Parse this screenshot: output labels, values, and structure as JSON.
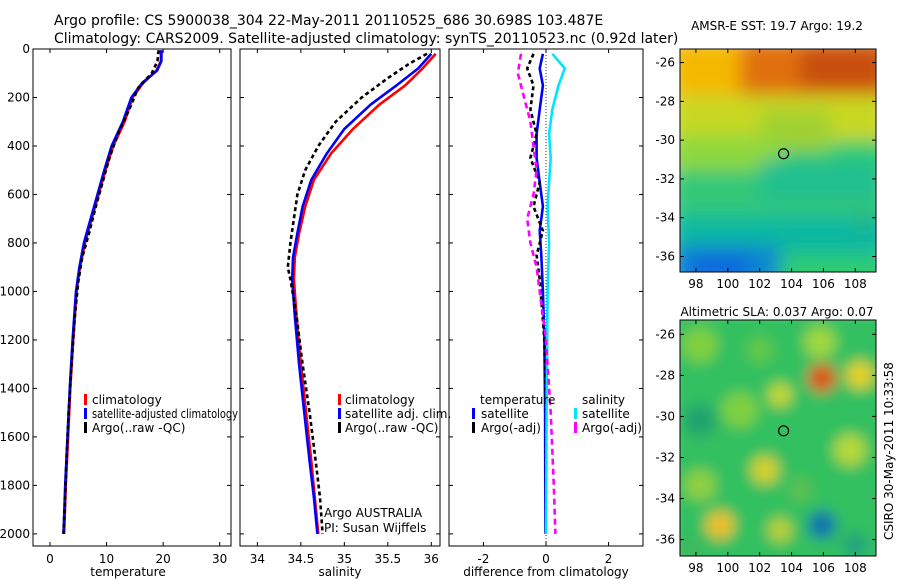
{
  "header": {
    "line1": "Argo profile: CS 5900038_304 22-May-2011 20110525_686 30.698S 103.487E",
    "line2": "Climatology: CARS2009. Satellite-adjusted climatology: synTS_20110523.nc (0.92d later)"
  },
  "side_label": "CSIRO 30-May-2011 10:33:58",
  "colors": {
    "climatology": "#ff0000",
    "satellite": "#0000ff",
    "argo": "#000000",
    "sal_satellite": "#00e5ff",
    "sal_argo": "#ff00ff"
  },
  "chart_data": [
    {
      "type": "line",
      "id": "temperature",
      "xlabel": "temperature",
      "ylabel": "",
      "xlim": [
        -3,
        32
      ],
      "ylim": [
        0,
        2050
      ],
      "y_reversed": true,
      "xticks": [
        0,
        10,
        20,
        30
      ],
      "xtick_labels": [
        "0",
        "10",
        "20",
        "30"
      ],
      "yticks": [
        0,
        200,
        400,
        600,
        800,
        1000,
        1200,
        1400,
        1600,
        1800,
        2000
      ],
      "ytick_labels": [
        "0",
        "200",
        "400",
        "600",
        "800",
        "1000",
        "1200",
        "1400",
        "1600",
        "1800",
        "2000"
      ],
      "legend": [
        "climatology",
        "satellite-adjusted climatology",
        "Argo(..raw -QC)"
      ],
      "series": [
        {
          "name": "climatology",
          "color": "#ff0000",
          "dash": "",
          "points": [
            [
              19.6,
              5
            ],
            [
              19.6,
              50
            ],
            [
              18.8,
              90
            ],
            [
              16.5,
              140
            ],
            [
              14.6,
              200
            ],
            [
              13.2,
              300
            ],
            [
              11.2,
              400
            ],
            [
              9.8,
              500
            ],
            [
              8.6,
              600
            ],
            [
              7.4,
              700
            ],
            [
              6.2,
              800
            ],
            [
              5.3,
              900
            ],
            [
              4.7,
              1000
            ],
            [
              4.1,
              1200
            ],
            [
              3.6,
              1400
            ],
            [
              3.2,
              1600
            ],
            [
              2.8,
              1800
            ],
            [
              2.5,
              2000
            ]
          ]
        },
        {
          "name": "satellite-adjusted climatology",
          "color": "#0000ff",
          "dash": "",
          "points": [
            [
              19.7,
              5
            ],
            [
              19.7,
              50
            ],
            [
              18.9,
              90
            ],
            [
              16.3,
              140
            ],
            [
              14.4,
              200
            ],
            [
              12.9,
              300
            ],
            [
              10.9,
              400
            ],
            [
              9.6,
              500
            ],
            [
              8.4,
              600
            ],
            [
              7.2,
              700
            ],
            [
              6.0,
              800
            ],
            [
              5.2,
              900
            ],
            [
              4.6,
              1000
            ],
            [
              4.0,
              1200
            ],
            [
              3.5,
              1400
            ],
            [
              3.1,
              1600
            ],
            [
              2.7,
              1800
            ],
            [
              2.4,
              2000
            ]
          ]
        },
        {
          "name": "Argo(..raw -QC)",
          "color": "#000000",
          "dash": "4,3",
          "points": [
            [
              19.2,
              5
            ],
            [
              19.0,
              50
            ],
            [
              18.0,
              100
            ],
            [
              15.6,
              160
            ],
            [
              14.0,
              250
            ],
            [
              12.0,
              350
            ],
            [
              10.5,
              450
            ],
            [
              9.3,
              550
            ],
            [
              8.1,
              650
            ],
            [
              6.9,
              760
            ],
            [
              5.7,
              860
            ],
            [
              5.0,
              960
            ],
            [
              4.4,
              1100
            ],
            [
              3.8,
              1300
            ],
            [
              3.3,
              1500
            ],
            [
              2.9,
              1700
            ],
            [
              2.6,
              1900
            ],
            [
              2.4,
              2000
            ]
          ]
        }
      ]
    },
    {
      "type": "line",
      "id": "salinity",
      "xlabel": "salinity",
      "xlim": [
        33.8,
        36.1
      ],
      "ylim": [
        0,
        2050
      ],
      "y_reversed": true,
      "xticks": [
        34,
        34.5,
        35,
        35.5,
        36
      ],
      "xtick_labels": [
        "34",
        "34.5",
        "35",
        "35.5",
        "36"
      ],
      "legend": [
        "climatology",
        "satellite adj. clim.",
        "Argo(..raw -QC)"
      ],
      "annotations": [
        "Argo AUSTRALIA",
        "PI: Susan Wijffels"
      ],
      "series": [
        {
          "name": "climatology",
          "color": "#ff0000",
          "dash": "",
          "points": [
            [
              36.05,
              20
            ],
            [
              35.9,
              80
            ],
            [
              35.7,
              150
            ],
            [
              35.4,
              230
            ],
            [
              35.1,
              330
            ],
            [
              34.85,
              430
            ],
            [
              34.65,
              540
            ],
            [
              34.55,
              650
            ],
            [
              34.48,
              760
            ],
            [
              34.43,
              860
            ],
            [
              34.42,
              950
            ],
            [
              34.45,
              1100
            ],
            [
              34.5,
              1300
            ],
            [
              34.56,
              1500
            ],
            [
              34.62,
              1700
            ],
            [
              34.66,
              1850
            ],
            [
              34.7,
              2000
            ]
          ]
        },
        {
          "name": "satellite adj. clim.",
          "color": "#0000ff",
          "dash": "",
          "points": [
            [
              36.0,
              20
            ],
            [
              35.85,
              80
            ],
            [
              35.6,
              150
            ],
            [
              35.3,
              230
            ],
            [
              35.0,
              330
            ],
            [
              34.8,
              430
            ],
            [
              34.62,
              540
            ],
            [
              34.52,
              650
            ],
            [
              34.46,
              760
            ],
            [
              34.41,
              860
            ],
            [
              34.4,
              950
            ],
            [
              34.43,
              1100
            ],
            [
              34.48,
              1300
            ],
            [
              34.54,
              1500
            ],
            [
              34.6,
              1700
            ],
            [
              34.65,
              1850
            ],
            [
              34.69,
              2000
            ]
          ]
        },
        {
          "name": "Argo(..raw -QC)",
          "color": "#000000",
          "dash": "4,3",
          "points": [
            [
              35.95,
              20
            ],
            [
              35.75,
              60
            ],
            [
              35.5,
              120
            ],
            [
              35.2,
              200
            ],
            [
              34.9,
              300
            ],
            [
              34.7,
              400
            ],
            [
              34.55,
              500
            ],
            [
              34.46,
              600
            ],
            [
              34.42,
              700
            ],
            [
              34.38,
              800
            ],
            [
              34.35,
              900
            ],
            [
              34.38,
              950
            ],
            [
              34.45,
              1100
            ],
            [
              34.52,
              1300
            ],
            [
              34.6,
              1500
            ],
            [
              34.67,
              1700
            ],
            [
              34.72,
              1850
            ],
            [
              34.75,
              2000
            ]
          ]
        }
      ]
    },
    {
      "type": "line",
      "id": "difference",
      "xlabel": "difference from climatology",
      "xlim": [
        -3.1,
        3.1
      ],
      "ylim": [
        0,
        2050
      ],
      "y_reversed": true,
      "xticks": [
        -2,
        0,
        2
      ],
      "xtick_labels": [
        "-2",
        "0",
        "2"
      ],
      "legend_titles": [
        "temperature",
        "salinity"
      ],
      "legend_temperature": [
        "satellite",
        "Argo(-adj)"
      ],
      "legend_salinity": [
        "satellite",
        "Argo(-adj)"
      ],
      "series": [
        {
          "name": "temperature satellite",
          "color": "#0000ff",
          "dash": "",
          "points": [
            [
              -0.1,
              20
            ],
            [
              -0.2,
              80
            ],
            [
              -0.1,
              150
            ],
            [
              -0.2,
              250
            ],
            [
              -0.3,
              350
            ],
            [
              -0.3,
              450
            ],
            [
              -0.2,
              550
            ],
            [
              -0.1,
              650
            ],
            [
              -0.2,
              750
            ],
            [
              -0.15,
              850
            ],
            [
              -0.1,
              1000
            ],
            [
              -0.05,
              1200
            ],
            [
              -0.03,
              1500
            ],
            [
              -0.02,
              2000
            ]
          ]
        },
        {
          "name": "temperature Argo(-adj)",
          "color": "#000000",
          "dash": "4,3",
          "points": [
            [
              -0.4,
              20
            ],
            [
              -0.6,
              80
            ],
            [
              -0.4,
              150
            ],
            [
              -0.5,
              250
            ],
            [
              -0.3,
              350
            ],
            [
              -0.5,
              450
            ],
            [
              -0.2,
              550
            ],
            [
              -0.4,
              650
            ],
            [
              -0.1,
              750
            ],
            [
              -0.3,
              850
            ],
            [
              -0.2,
              950
            ],
            [
              -0.05,
              1200
            ],
            [
              0.0,
              1500
            ],
            [
              0.0,
              2000
            ]
          ]
        },
        {
          "name": "salinity satellite",
          "color": "#00e5ff",
          "dash": "",
          "points": [
            [
              0.2,
              20
            ],
            [
              0.6,
              80
            ],
            [
              0.4,
              150
            ],
            [
              0.2,
              250
            ],
            [
              0.1,
              350
            ],
            [
              0.15,
              450
            ],
            [
              0.1,
              550
            ],
            [
              0.05,
              650
            ],
            [
              0.1,
              800
            ],
            [
              0.05,
              1000
            ],
            [
              0.02,
              1500
            ],
            [
              0.0,
              2000
            ]
          ]
        },
        {
          "name": "salinity Argo(-adj)",
          "color": "#ff00ff",
          "dash": "6,4",
          "points": [
            [
              -0.8,
              20
            ],
            [
              -0.9,
              100
            ],
            [
              -0.7,
              200
            ],
            [
              -0.5,
              300
            ],
            [
              -0.4,
              400
            ],
            [
              -0.3,
              500
            ],
            [
              -0.4,
              600
            ],
            [
              -0.6,
              700
            ],
            [
              -0.5,
              800
            ],
            [
              -0.3,
              900
            ],
            [
              -0.2,
              1000
            ],
            [
              0.0,
              1200
            ],
            [
              0.15,
              1500
            ],
            [
              0.25,
              1800
            ],
            [
              0.3,
              2000
            ]
          ]
        }
      ]
    },
    {
      "type": "heatmap",
      "id": "sst-map",
      "title": "AMSR-E SST: 19.7 Argo: 19.2",
      "xlim": [
        97,
        109.3
      ],
      "ylim": [
        -36.8,
        -25.3
      ],
      "xticks": [
        98,
        100,
        102,
        104,
        106,
        108
      ],
      "xtick_labels": [
        "98",
        "100",
        "102",
        "104",
        "106",
        "108"
      ],
      "yticks": [
        -26,
        -28,
        -30,
        -32,
        -34,
        -36
      ],
      "ytick_labels": [
        "-26",
        "-28",
        "-30",
        "-32",
        "-34",
        "-36"
      ],
      "marker": [
        103.5,
        -30.7
      ]
    },
    {
      "type": "heatmap",
      "id": "sla-map",
      "title": "Altimetric SLA: 0.037 Argo: 0.07",
      "xlim": [
        97,
        109.3
      ],
      "ylim": [
        -36.8,
        -25.3
      ],
      "xticks": [
        98,
        100,
        102,
        104,
        106,
        108
      ],
      "xtick_labels": [
        "98",
        "100",
        "102",
        "104",
        "106",
        "108"
      ],
      "yticks": [
        -26,
        -28,
        -30,
        -32,
        -34,
        -36
      ],
      "ytick_labels": [
        "-26",
        "-28",
        "-30",
        "-32",
        "-34",
        "-36"
      ],
      "marker": [
        103.5,
        -30.7
      ]
    }
  ]
}
